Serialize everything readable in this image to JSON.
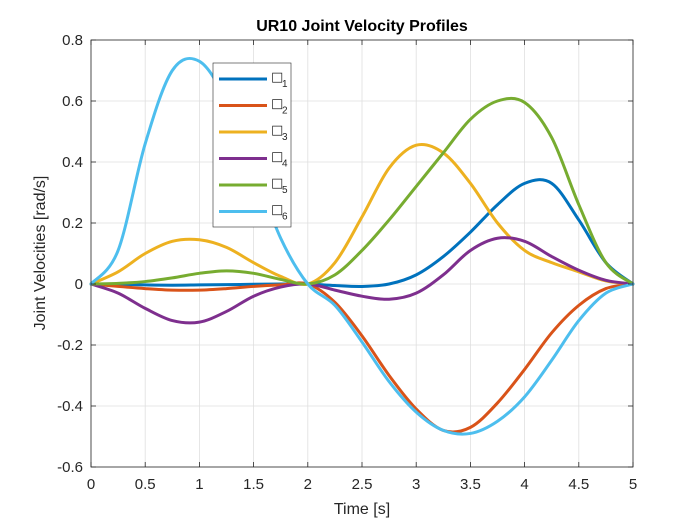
{
  "chart_data": {
    "type": "line",
    "title": "UR10 Joint Velocity Profiles",
    "xlabel": "Time [s]",
    "ylabel": "Joint Velocities [rad/s]",
    "xlim": [
      0,
      5
    ],
    "ylim": [
      -0.6,
      0.8
    ],
    "xticks": [
      0,
      0.5,
      1,
      1.5,
      2,
      2.5,
      3,
      3.5,
      4,
      4.5,
      5
    ],
    "xtick_labels": [
      "0",
      "0.5",
      "1",
      "1.5",
      "2",
      "2.5",
      "3",
      "3.5",
      "4",
      "4.5",
      "5"
    ],
    "yticks": [
      -0.6,
      -0.4,
      -0.2,
      0,
      0.2,
      0.4,
      0.6,
      0.8
    ],
    "ytick_labels": [
      "-0.6",
      "-0.4",
      "-0.2",
      "0",
      "0.2",
      "0.4",
      "0.6",
      "0.8"
    ],
    "grid": true,
    "legend_position": "top-left inside",
    "x": [
      0,
      0.25,
      0.5,
      0.75,
      1,
      1.25,
      1.5,
      1.75,
      2,
      2.25,
      2.5,
      2.75,
      3,
      3.25,
      3.5,
      3.75,
      4,
      4.25,
      4.5,
      4.75,
      5
    ],
    "series": [
      {
        "name": "□",
        "subscript": "1",
        "color": "#0072BD",
        "values": [
          0,
          -0.001,
          -0.003,
          -0.004,
          -0.003,
          -0.002,
          -0.001,
          0,
          0,
          -0.005,
          -0.008,
          0.0,
          0.03,
          0.09,
          0.17,
          0.26,
          0.33,
          0.33,
          0.21,
          0.07,
          0
        ]
      },
      {
        "name": "□",
        "subscript": "2",
        "color": "#D95319",
        "values": [
          0,
          -0.008,
          -0.015,
          -0.02,
          -0.02,
          -0.015,
          -0.008,
          -0.003,
          0,
          -0.06,
          -0.17,
          -0.3,
          -0.41,
          -0.48,
          -0.47,
          -0.39,
          -0.28,
          -0.16,
          -0.07,
          -0.015,
          0
        ]
      },
      {
        "name": "□",
        "subscript": "3",
        "color": "#EDB120",
        "values": [
          0,
          0.04,
          0.1,
          0.14,
          0.145,
          0.12,
          0.07,
          0.025,
          0,
          0.07,
          0.22,
          0.38,
          0.455,
          0.43,
          0.33,
          0.2,
          0.11,
          0.07,
          0.04,
          0.01,
          0
        ]
      },
      {
        "name": "□",
        "subscript": "4",
        "color": "#7E2F8E",
        "values": [
          0,
          -0.03,
          -0.08,
          -0.12,
          -0.125,
          -0.09,
          -0.04,
          -0.01,
          0,
          -0.02,
          -0.04,
          -0.05,
          -0.03,
          0.03,
          0.11,
          0.15,
          0.14,
          0.09,
          0.045,
          0.012,
          0
        ]
      },
      {
        "name": "□",
        "subscript": "5",
        "color": "#77AC30",
        "values": [
          0,
          0.002,
          0.008,
          0.02,
          0.035,
          0.043,
          0.035,
          0.015,
          0,
          0.03,
          0.11,
          0.21,
          0.32,
          0.43,
          0.54,
          0.6,
          0.595,
          0.48,
          0.26,
          0.07,
          0
        ]
      },
      {
        "name": "□",
        "subscript": "6",
        "color": "#4DBEEE",
        "values": [
          0,
          0.11,
          0.46,
          0.7,
          0.73,
          0.6,
          0.38,
          0.15,
          0,
          -0.07,
          -0.19,
          -0.32,
          -0.42,
          -0.48,
          -0.49,
          -0.45,
          -0.37,
          -0.25,
          -0.12,
          -0.03,
          0
        ]
      }
    ]
  }
}
